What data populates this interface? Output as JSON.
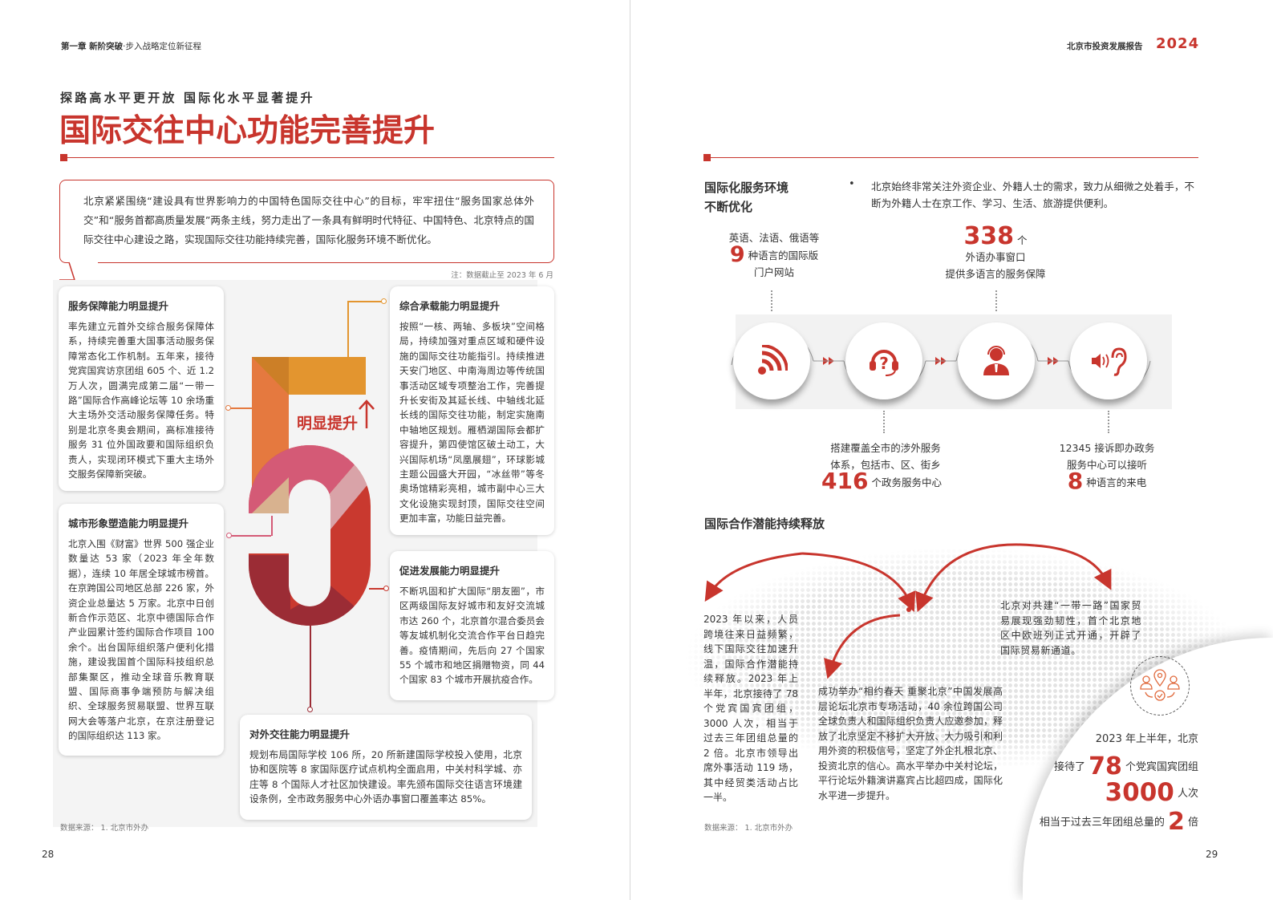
{
  "left_page": {
    "running_head": {
      "chapter": "第一章",
      "part_bold": "新阶突破",
      "part_rest": "·步入战略定位新征程"
    },
    "kicker": "探路高水平更开放 国际化水平显著提升",
    "title": "国际交往中心功能完善提升",
    "intro": "北京紧紧围绕“建设具有世界影响力的中国特色国际交往中心”的目标，牢牢扭住“服务国家总体外交”和“服务首都高质量发展”两条主线，努力走出了一条具有鲜明时代特征、中国特色、北京特点的国际交往中心建设之路，实现国际交往功能持续完善，国际化服务环境不断优化。",
    "note": "注：数据截止至 2023 年 6 月",
    "center_label": "明显提升",
    "center_numeral": "5",
    "cards": [
      {
        "title": "服务保障能力明显提升",
        "body": "率先建立元首外交综合服务保障体系，持续完善重大国事活动服务保障常态化工作机制。五年来，接待党宾国宾访京团组 605 个、近 1.2 万人次，圆满完成第二届“一带一路”国际合作高峰论坛等 10 余场重大主场外交活动服务保障任务。特别是北京冬奥会期间，高标准接待服务 31 位外国政要和国际组织负责人，实现闭环模式下重大主场外交服务保障新突破。"
      },
      {
        "title": "城市形象塑造能力明显提升",
        "body": "北京入围《财富》世界 500 强企业数量达 53 家（2023 年全年数据），连续 10 年居全球城市榜首。在京跨国公司地区总部 226 家，外资企业总量达 5 万家。北京中日创新合作示范区、北京中德国际合作产业园累计签约国际合作项目 100 余个。出台国际组织落户便利化措施，建设我国首个国际科技组织总部集聚区，推动全球音乐教育联盟、国际商事争端预防与解决组织、全球服务贸易联盟、世界互联网大会等落户北京，在京注册登记的国际组织达 113 家。"
      },
      {
        "title": "综合承载能力明显提升",
        "body": "按照“一核、两轴、多板块”空间格局，持续加强对重点区域和硬件设施的国际交往功能指引。持续推进天安门地区、中南海周边等传统国事活动区域专项整治工作，完善提升长安街及其延长线、中轴线北延长线的国际交往功能，制定实施南中轴地区规划。雁栖湖国际会都扩容提升，第四使馆区破土动工，大兴国际机场“凤凰展翅”，环球影城主题公园盛大开园，“冰丝带”等冬奥场馆精彩亮相，城市副中心三大文化设施实现封顶，国际交往空间更加丰富，功能日益完善。"
      },
      {
        "title": "促进发展能力明显提升",
        "body": "不断巩固和扩大国际“朋友圈”，市区两级国际友好城市和友好交流城市达 260 个，北京首尔混合委员会等友城机制化交流合作平台日趋完善。疫情期间，先后向 27 个国家 55 个城市和地区捐赠物资，同 44 个国家 83 个城市开展抗疫合作。"
      },
      {
        "title": "对外交往能力明显提升",
        "body": "规划布局国际学校 106 所，20 所新建国际学校投入使用，北京协和医院等 8 家国际医疗试点机构全面启用，中关村科学城、亦庄等 8 个国际人才社区加快建设。率先颁布国际交往语言环境建设条例，全市政务服务中心外语办事窗口覆盖率达 85%。"
      }
    ],
    "source": "数据来源： 1. 北京市外办",
    "page_number": "28"
  },
  "right_page": {
    "running_head": {
      "report": "北京市投资发展报告",
      "year": "2024"
    },
    "section1": {
      "title_line1": "国际化服务环境",
      "title_line2": "不断优化",
      "bullet": "北京始终非常关注外资企业、外籍人士的需求，致力从细微之处着手，不断为外籍人士在京工作、学习、生活、旅游提供便利。",
      "stats": [
        {
          "pre": "英语、法语、俄语等",
          "number": "9",
          "suffix": "种语言的国际版",
          "post": "门户网站",
          "icon": "rss-icon"
        },
        {
          "pre": "搭建覆盖全市的涉外服务",
          "pre2": "体系，包括市、区、街乡",
          "number": "416",
          "suffix": "个政务服务中心",
          "icon": "headset-question-icon"
        },
        {
          "number": "338",
          "suffix": "个",
          "post": "外语办事窗口",
          "post2": "提供多语言的服务保障",
          "icon": "customer-service-agent-icon"
        },
        {
          "pre": "12345 接诉即办政务",
          "pre2": "服务中心可以接听",
          "number": "8",
          "suffix": "种语言的来电",
          "icon": "ear-sound-icon"
        }
      ]
    },
    "section2": {
      "title": "国际合作潜能持续释放",
      "text_left": "2023 年以来，人员跨境往来日益频繁，线下国际交往加速升温，国际合作潜能持续释放。2023 年上半年，北京接待了 78 个党宾国宾团组，3000 人次，相当于过去三年团组总量的 2 倍。北京市领导出席外事活动 119 场，其中经贸类活动占比一半。",
      "text_middle": "成功举办“相约春天 重聚北京”中国发展高层论坛北京市专场活动，40 余位跨国公司全球负责人和国际组织负责人应邀参加，释放了北京坚定不移扩大开放、大力吸引和利用外资的积极信号，坚定了外企扎根北京、投资北京的信心。高水平举办中关村论坛，平行论坛外籍演讲嘉宾占比超四成，国际化水平进一步提升。",
      "text_right": "北京对共建“一带一路”国家贸易展现强劲韧性，首个北京地区中欧班列正式开通，开辟了国际贸易新通道。",
      "highlight": {
        "line1": "2023 年上半年，北京",
        "line2_pre": "接待了",
        "line2_num": "78",
        "line2_post": "个党宾国宾团组",
        "line3_num": "3000",
        "line3_post": "人次",
        "line4_pre": "相当于过去三年团组总量的",
        "line4_num": "2",
        "line4_post": "倍"
      }
    },
    "source": "数据来源： 1. 北京市外办",
    "page_number": "29"
  },
  "colors": {
    "accent": "#c8352d",
    "orange": "#e3952f",
    "pink": "#d45a76",
    "dark_red": "#9b2c35",
    "grey_band": "#f2f2f2"
  }
}
